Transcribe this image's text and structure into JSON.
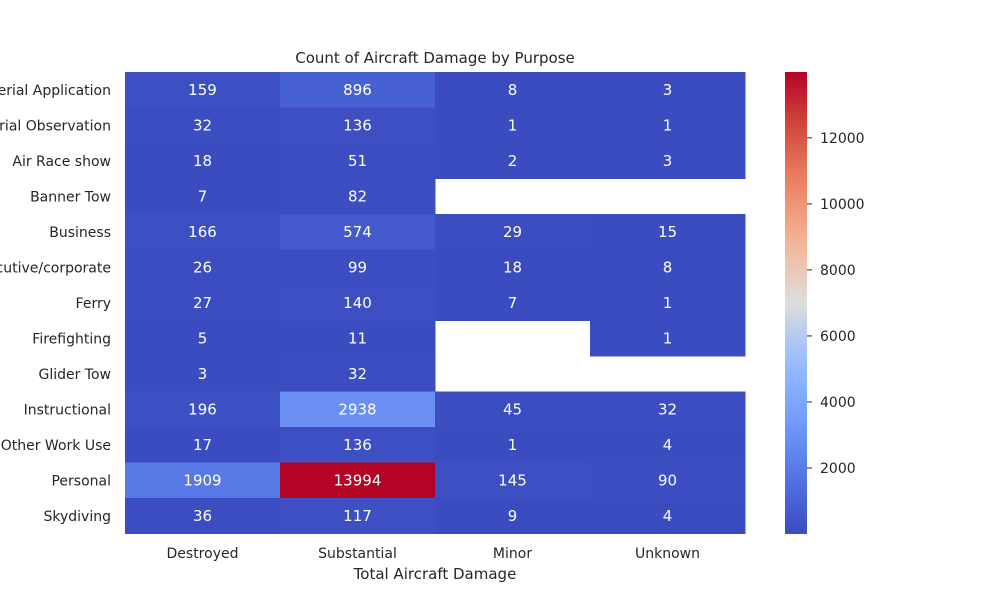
{
  "chart_data": {
    "type": "heatmap",
    "title": "Count of Aircraft Damage by Purpose",
    "xlabel": "Total Aircraft Damage",
    "ylabel": "",
    "columns": [
      "Destroyed",
      "Substantial",
      "Minor",
      "Unknown"
    ],
    "rows": [
      "Aerial Application",
      "Aerial Observation",
      "Air Race show",
      "Banner Tow",
      "Business",
      "Executive/corporate",
      "Ferry",
      "Firefighting",
      "Glider Tow",
      "Instructional",
      "Other Work Use",
      "Personal",
      "Skydiving"
    ],
    "values": [
      [
        159,
        896,
        8,
        3
      ],
      [
        32,
        136,
        1,
        1
      ],
      [
        18,
        51,
        2,
        3
      ],
      [
        7,
        82,
        null,
        null
      ],
      [
        166,
        574,
        29,
        15
      ],
      [
        26,
        99,
        18,
        8
      ],
      [
        27,
        140,
        7,
        1
      ],
      [
        5,
        11,
        null,
        1
      ],
      [
        3,
        32,
        null,
        null
      ],
      [
        196,
        2938,
        45,
        32
      ],
      [
        17,
        136,
        1,
        4
      ],
      [
        1909,
        13994,
        145,
        90
      ],
      [
        36,
        117,
        9,
        4
      ]
    ],
    "colormap": "coolwarm",
    "colorbar": {
      "min": 1,
      "max": 13994,
      "ticks": [
        2000,
        4000,
        6000,
        8000,
        10000,
        12000
      ]
    },
    "missing_color": "#ffffff"
  }
}
